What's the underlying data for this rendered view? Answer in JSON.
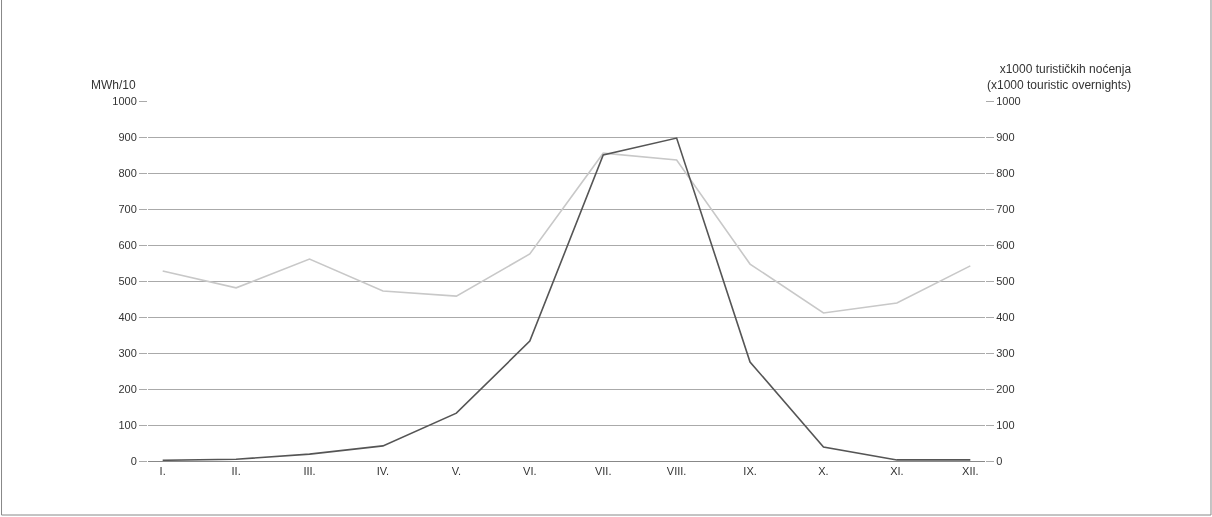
{
  "chart_data": {
    "type": "line",
    "ylabel": "MWh/10",
    "y2label": "x1000 turističkih noćenja\n(x1000 touristic overnights)",
    "categories": [
      "I.",
      "II.",
      "III.",
      "IV.",
      "V.",
      "VI.",
      "VII.",
      "VIII.",
      "IX.",
      "X.",
      "XI.",
      "XII."
    ],
    "series": [
      {
        "color": "#c8c8c8",
        "values": [
          528,
          481,
          561,
          472,
          458,
          575,
          855,
          836,
          547,
          411,
          439,
          542
        ]
      },
      {
        "color": "#555555",
        "axis": "y2",
        "values": [
          2,
          5,
          19,
          42,
          133,
          333,
          850,
          897,
          275,
          39,
          3,
          3
        ]
      }
    ],
    "ylim": [
      0,
      1000
    ],
    "yticks": [
      0,
      100,
      200,
      300,
      400,
      500,
      600,
      700,
      800,
      900,
      1000
    ],
    "y2lim": [
      0,
      1000
    ],
    "y2ticks": [
      0,
      100,
      200,
      300,
      400,
      500,
      600,
      700,
      800,
      900,
      1000
    ],
    "grid": "y",
    "marker": "none",
    "line_style": "solid"
  }
}
